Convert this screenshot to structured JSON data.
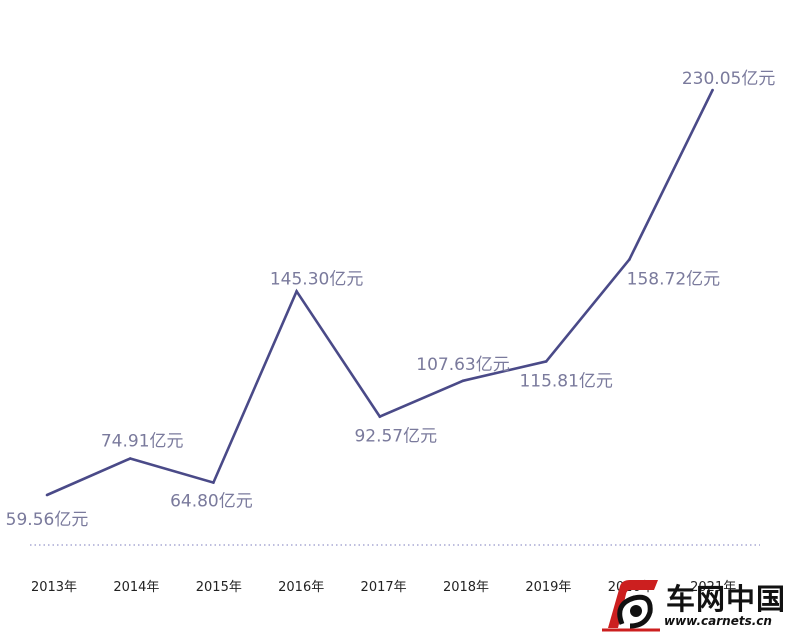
{
  "chart_data": {
    "type": "line",
    "categories": [
      "2013年",
      "2014年",
      "2015年",
      "2016年",
      "2017年",
      "2018年",
      "2019年",
      "2020年",
      "2021年"
    ],
    "values": [
      59.56,
      74.91,
      64.8,
      145.3,
      92.57,
      107.63,
      115.81,
      158.72,
      230.05
    ],
    "data_labels": [
      "59.56亿元",
      "74.91亿元",
      "64.80亿元",
      "145.30亿元",
      "92.57亿元",
      "107.63亿元",
      "115.81亿元",
      "158.72亿元",
      "230.05亿元"
    ],
    "unit": "亿元",
    "title": "",
    "xlabel": "",
    "ylabel": "",
    "grid": false,
    "legend": "none",
    "colors": {
      "line": "#4a4a88",
      "label": "#7a7a9c",
      "baseline": "#a9a9d4",
      "tick": "#222222"
    }
  },
  "watermark": {
    "name": "车网中国",
    "url": "www.carnets.cn",
    "colors": {
      "red": "#cc1f1f",
      "dark": "#111111"
    }
  }
}
